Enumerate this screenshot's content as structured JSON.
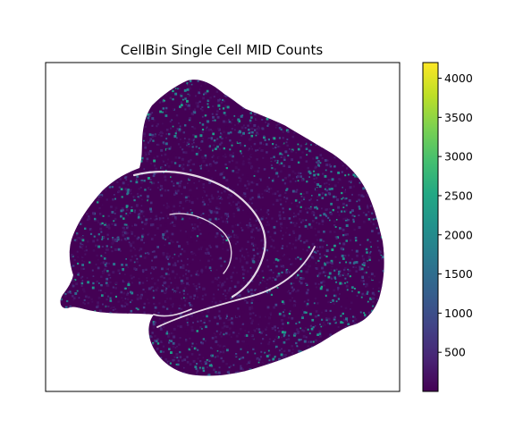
{
  "chart_data": {
    "type": "scatter",
    "title": "CellBin Single Cell MID Counts",
    "xlabel": "",
    "ylabel": "",
    "x_ticks_visible": false,
    "y_ticks_visible": false,
    "colormap": "viridis",
    "point_color_default": "#440154",
    "colorbar": {
      "range": [
        0,
        4200
      ],
      "tick_values": [
        500,
        1000,
        1500,
        2000,
        2500,
        3000,
        3500,
        4000
      ],
      "tick_labels": [
        "500",
        "1000",
        "1500",
        "2000",
        "2500",
        "3000",
        "3500",
        "4000"
      ]
    },
    "description_value_distribution": "most cells below 500 counts, a minority between 500 and 2000"
  }
}
